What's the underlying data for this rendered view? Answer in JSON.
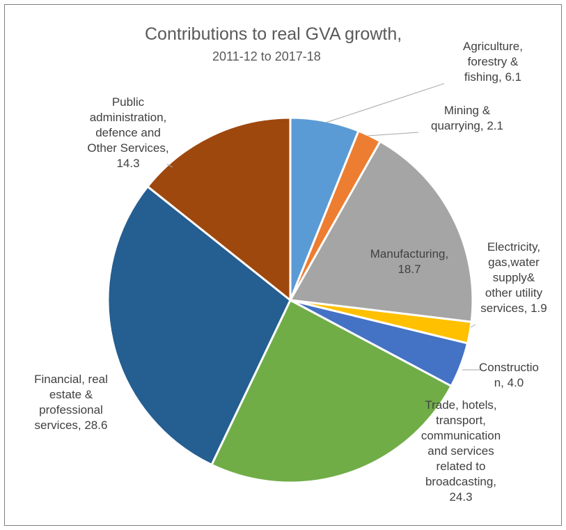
{
  "chart_data": {
    "type": "pie",
    "title": "Contributions to real GVA growth,",
    "subtitle": "2011-12 to 2017-18",
    "slices": [
      {
        "label_lines": [
          "Agriculture,",
          "forestry &",
          "fishing, 6.1"
        ],
        "value": 6.1,
        "color": "#5B9BD5"
      },
      {
        "label_lines": [
          "Mining &",
          "quarrying, 2.1"
        ],
        "value": 2.1,
        "color": "#ED7D31"
      },
      {
        "label_lines": [
          "Manufacturing,",
          "18.7"
        ],
        "value": 18.7,
        "color": "#A5A5A5"
      },
      {
        "label_lines": [
          "Electricity,",
          "gas,water",
          "supply&",
          "other utility",
          "services, 1.9"
        ],
        "value": 1.9,
        "color": "#FFC000"
      },
      {
        "label_lines": [
          "Constructio",
          "n, 4.0"
        ],
        "value": 4.0,
        "color": "#4472C4"
      },
      {
        "label_lines": [
          "Trade, hotels,",
          "transport,",
          "communication",
          "and services",
          "related to",
          "broadcasting,",
          "24.3"
        ],
        "value": 24.3,
        "color": "#70AD47"
      },
      {
        "label_lines": [
          "Financial, real",
          "estate &",
          "professional",
          "services, 28.6"
        ],
        "value": 28.6,
        "color": "#255E91"
      },
      {
        "label_lines": [
          "Public",
          "administration,",
          "defence and",
          "Other Services,",
          "14.3"
        ],
        "value": 14.3,
        "color": "#9E480E"
      }
    ]
  }
}
